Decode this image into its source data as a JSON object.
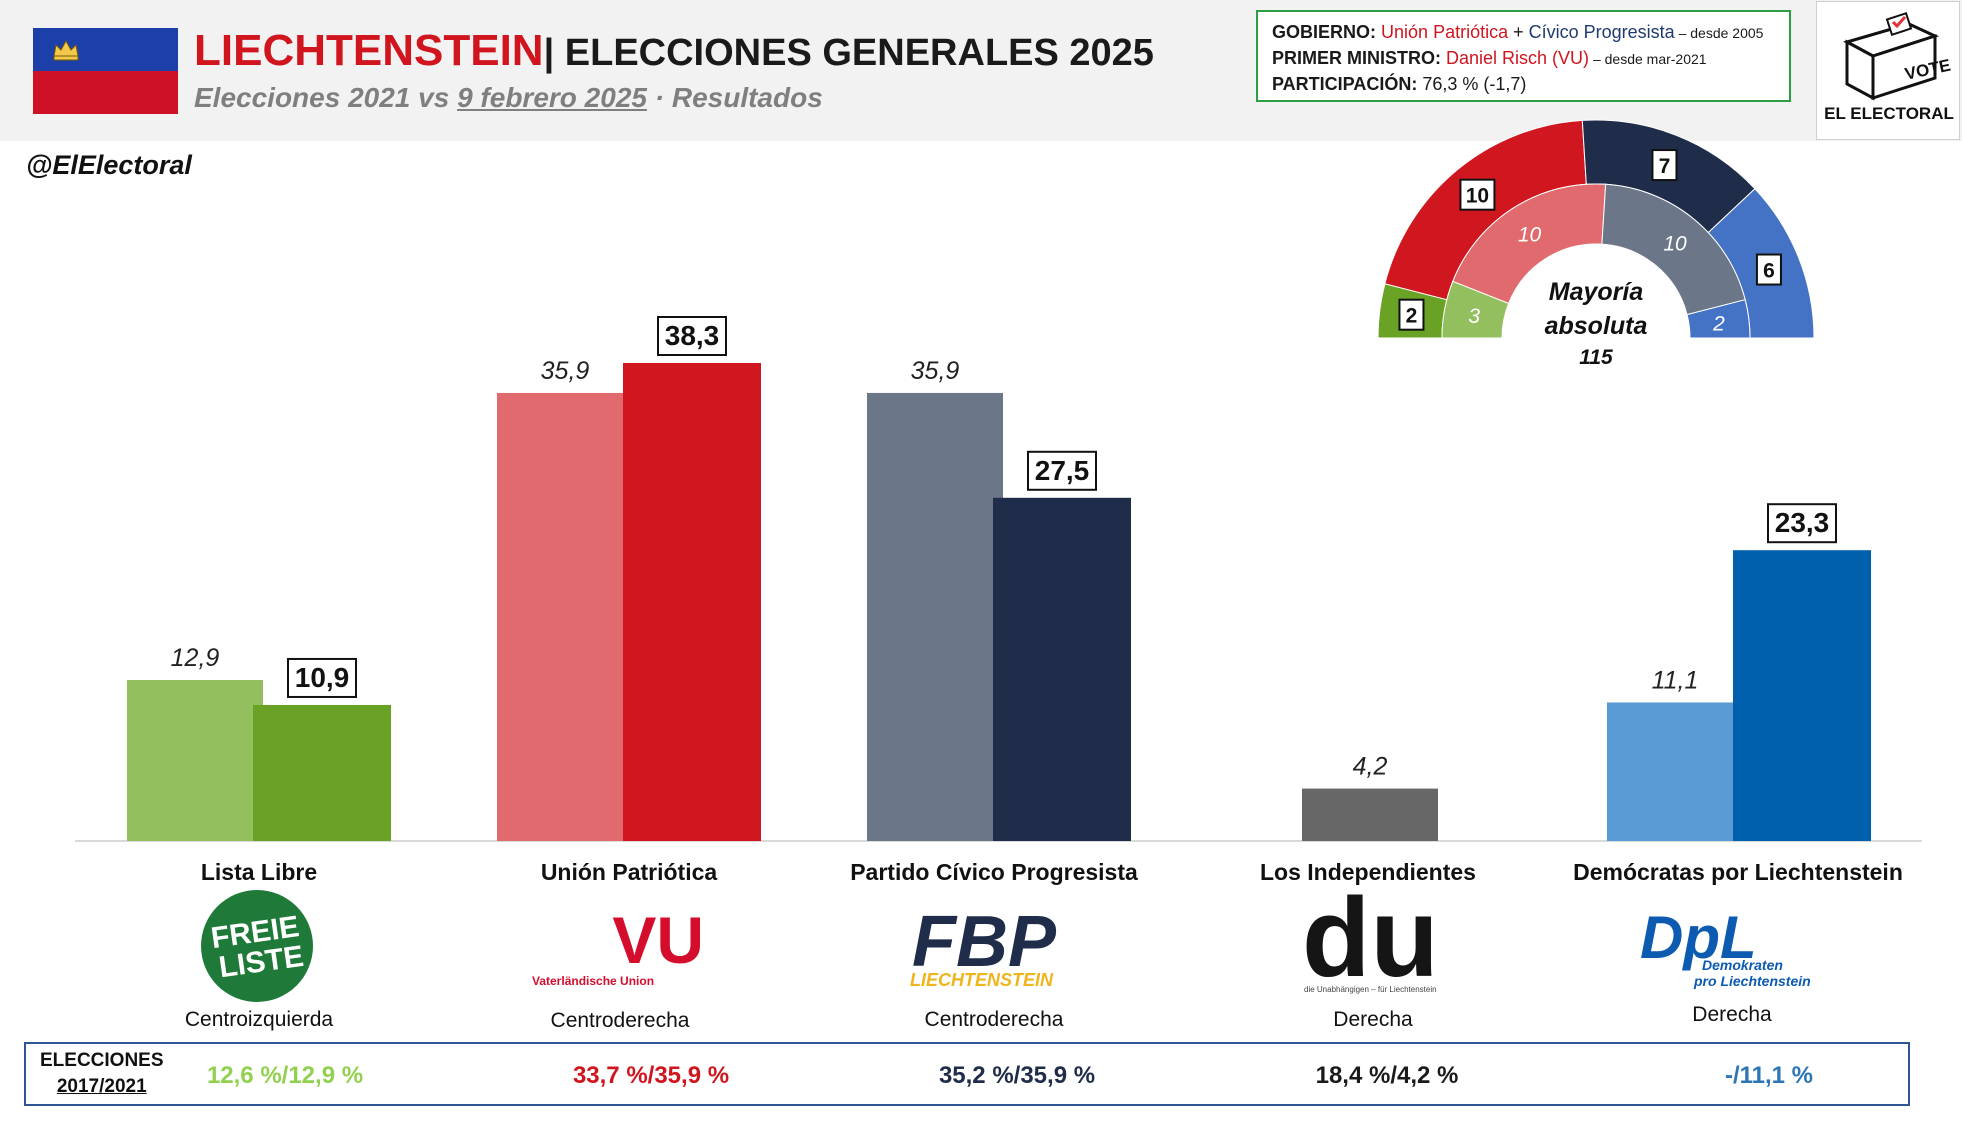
{
  "header": {
    "country": "LIECHTENSTEIN",
    "title_rest": "| ELECCIONES GENERALES 2025",
    "subtitle_part1": "Elecciones 2021 vs ",
    "subtitle_date": "9 febrero 2025",
    "subtitle_part2": " · Resultados",
    "handle": "@ElElectoral"
  },
  "infobox": {
    "gov_label": "GOBIERNO:",
    "gov_party1": "Unión Patriótica",
    "gov_plus": " + ",
    "gov_party2": "Cívico Progresista",
    "gov_since": " – desde 2005",
    "pm_label": "PRIMER MINISTRO:",
    "pm_name": "Daniel Risch (VU)",
    "pm_since": " – desde mar-2021",
    "turnout_label": "PARTICIPACIÓN:",
    "turnout_value": " 76,3 % (-1,7)"
  },
  "votebox": {
    "box_text": "VOTE",
    "label": "EL ELECTORAL"
  },
  "chart_data": {
    "type": "bar",
    "categories": [
      "Lista Libre",
      "Unión Patriótica",
      "Partido Cívico Progresista",
      "Los Independientes",
      "Demócratas por Liechtenstein"
    ],
    "series": [
      {
        "name": "2021",
        "values": [
          12.9,
          35.9,
          35.9,
          4.2,
          11.1
        ],
        "labels": [
          "12,9",
          "35,9",
          "35,9",
          "4,2",
          "11,1"
        ]
      },
      {
        "name": "2025",
        "values": [
          10.9,
          38.3,
          27.5,
          null,
          23.3
        ],
        "labels": [
          "10,9",
          "38,3",
          "27,5",
          "",
          "23,3"
        ]
      }
    ],
    "ylim": [
      0,
      40
    ],
    "grid": false,
    "colors_2021": [
      "#93bf5f",
      "#e06a6e",
      "#6c7689",
      "#676767",
      "#5b9bd5"
    ],
    "colors_2025": [
      "#6aa226",
      "#d0171f",
      "#1f2d4a",
      null,
      "#0060ad"
    ]
  },
  "seats": {
    "label_line1": "Mayoría",
    "label_line2": "absoluta",
    "label_line3": "115",
    "outer": [
      {
        "party": "Lista Libre",
        "seats": 2,
        "label": "2",
        "color": "#6aa226"
      },
      {
        "party": "Unión Patriótica",
        "seats": 10,
        "label": "10",
        "color": "#d0171f"
      },
      {
        "party": "Partido Cívico Progresista",
        "seats": 7,
        "label": "7",
        "color": "#1f2d4a"
      },
      {
        "party": "Demócratas por Liechtenstein",
        "seats": 6,
        "label": "6",
        "color": "#4472c4"
      }
    ],
    "inner": [
      {
        "party": "Lista Libre",
        "seats": 3,
        "label": "3",
        "color": "#93bf5f"
      },
      {
        "party": "Unión Patriótica",
        "seats": 10,
        "label": "10",
        "color": "#e06a6e"
      },
      {
        "party": "Partido Cívico Progresista",
        "seats": 10,
        "label": "10",
        "color": "#6c7689"
      },
      {
        "party": "Demócratas por Liechtenstein",
        "seats": 2,
        "label": "2",
        "color": "#4472c4"
      }
    ]
  },
  "parties": [
    {
      "name": "Lista Libre",
      "ideology": "Centroizquierda",
      "logo_line1": "FREIE",
      "logo_line2": "LISTE",
      "prev": "12,6 %/12,9 %",
      "prev_color": "#92d050"
    },
    {
      "name": "Unión Patriótica",
      "ideology": "Centroderecha",
      "logo_main": "VU",
      "logo_sub": "Vaterländische Union",
      "prev": "33,7 %/35,9 %",
      "prev_color": "#d0151f"
    },
    {
      "name": "Partido Cívico Progresista",
      "ideology": "Centroderecha",
      "logo_main": "FBP",
      "logo_sub": "LIECHTENSTEIN",
      "prev": "35,2 %/35,9 %",
      "prev_color": "#1f2d4a"
    },
    {
      "name": "Los Independientes",
      "ideology": "Derecha",
      "logo_main": "du",
      "logo_sub": "die Unabhängigen – für Liechtenstein",
      "prev": "18,4 %/4,2 %",
      "prev_color": "#1a1a1a"
    },
    {
      "name": "Demócratas por Liechtenstein",
      "ideology": "Derecha",
      "logo_main": "DpL",
      "logo_sub1": "Demokraten",
      "logo_sub2": "pro Liechtenstein",
      "prev": "-/11,1 %",
      "prev_color": "#2e75b6"
    }
  ],
  "previous": {
    "label_line1": "ELECCIONES",
    "label_line2": "2017/2021"
  }
}
